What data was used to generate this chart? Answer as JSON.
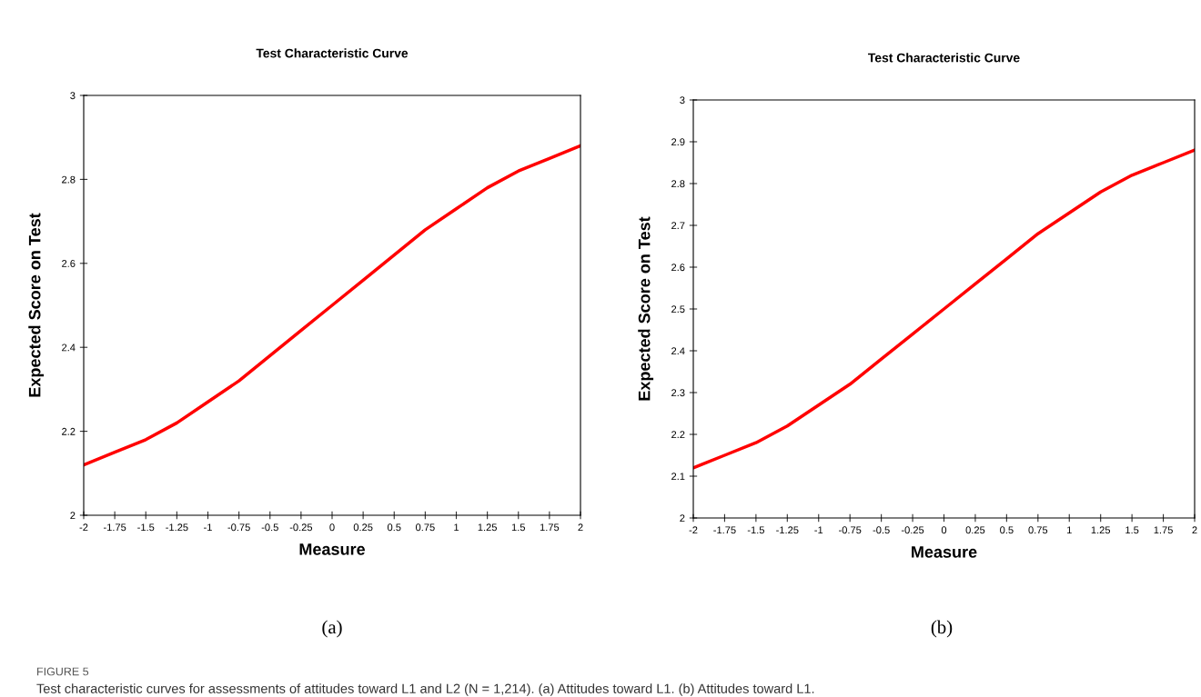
{
  "chart_data": [
    {
      "type": "line",
      "title": "Test Characteristic Curve",
      "xlabel": "Measure",
      "ylabel": "Expected Score on Test",
      "x": [
        -2,
        -1.75,
        -1.5,
        -1.25,
        -1,
        -0.75,
        -0.5,
        -0.25,
        0,
        0.25,
        0.5,
        0.75,
        1,
        1.25,
        1.5,
        1.75,
        2
      ],
      "series": [
        {
          "color": "#ff0000",
          "values": [
            2.12,
            2.15,
            2.18,
            2.22,
            2.27,
            2.32,
            2.38,
            2.44,
            2.5,
            2.56,
            2.62,
            2.68,
            2.73,
            2.78,
            2.82,
            2.85,
            2.88
          ]
        }
      ],
      "xlim": [
        -2,
        2
      ],
      "xticks": [
        -2,
        -1.75,
        -1.5,
        -1.25,
        -1,
        -0.75,
        -0.5,
        -0.25,
        0,
        0.25,
        0.5,
        0.75,
        1,
        1.25,
        1.5,
        1.75,
        2
      ],
      "ylim": [
        2,
        3
      ],
      "yticks": [
        2,
        2.2,
        2.4,
        2.6,
        2.8,
        3
      ],
      "grid": false,
      "legend": false,
      "annotations": [
        "(a)",
        "FIGURE 5",
        "Test characteristic curves for assessments of attitudes toward L1 and L2 (N = 1,214). (a) Attitudes toward L1. (b) Attitudes toward L1."
      ]
    },
    {
      "type": "line",
      "title": "Test Characteristic Curve",
      "xlabel": "Measure",
      "ylabel": "Expected Score on Test",
      "x": [
        -2,
        -1.75,
        -1.5,
        -1.25,
        -1,
        -0.75,
        -0.5,
        -0.25,
        0,
        0.25,
        0.5,
        0.75,
        1,
        1.25,
        1.5,
        1.75,
        2
      ],
      "series": [
        {
          "color": "#ff0000",
          "values": [
            2.12,
            2.15,
            2.18,
            2.22,
            2.27,
            2.32,
            2.38,
            2.44,
            2.5,
            2.56,
            2.62,
            2.68,
            2.73,
            2.78,
            2.82,
            2.85,
            2.88
          ]
        }
      ],
      "xlim": [
        -2,
        2
      ],
      "xticks": [
        -2,
        -1.75,
        -1.5,
        -1.25,
        -1,
        -0.75,
        -0.5,
        -0.25,
        0,
        0.25,
        0.5,
        0.75,
        1,
        1.25,
        1.5,
        1.75,
        2
      ],
      "ylim": [
        2,
        3
      ],
      "yticks": [
        2,
        2.1,
        2.2,
        2.3,
        2.4,
        2.5,
        2.6,
        2.7,
        2.8,
        2.9,
        3
      ],
      "grid": false,
      "legend": false,
      "annotations": [
        "(b)"
      ]
    }
  ]
}
